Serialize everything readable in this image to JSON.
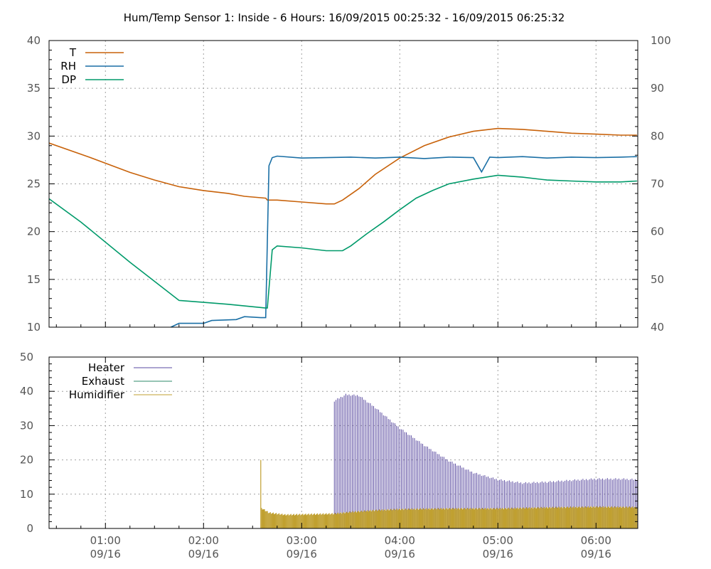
{
  "chart_data": [
    {
      "type": "line",
      "title": "Hum/Temp Sensor 1: Inside - 6 Hours: 16/09/2015 00:25:32 - 16/09/2015 06:25:32",
      "x_range": [
        "00:25:32",
        "06:25:32"
      ],
      "y_left_ticks": [
        "10",
        "15",
        "20",
        "25",
        "30",
        "35",
        "40"
      ],
      "y_left_range": [
        10,
        40
      ],
      "y_right_ticks": [
        "40",
        "50",
        "60",
        "70",
        "80",
        "90",
        "100"
      ],
      "y_right_range": [
        40,
        100
      ],
      "grid": true,
      "legend_position": "top-left",
      "series": [
        {
          "name": "T",
          "axis": "left",
          "color": "#c8620a",
          "points": [
            [
              "00:25",
              29.3
            ],
            [
              "00:50",
              27.8
            ],
            [
              "01:15",
              26.2
            ],
            [
              "01:30",
              25.4
            ],
            [
              "01:45",
              24.7
            ],
            [
              "02:00",
              24.3
            ],
            [
              "02:15",
              24.0
            ],
            [
              "02:25",
              23.7
            ],
            [
              "02:38",
              23.5
            ],
            [
              "02:39",
              23.3
            ],
            [
              "02:45",
              23.3
            ],
            [
              "03:00",
              23.1
            ],
            [
              "03:15",
              22.9
            ],
            [
              "03:20",
              22.9
            ],
            [
              "03:25",
              23.3
            ],
            [
              "03:35",
              24.5
            ],
            [
              "03:45",
              26.0
            ],
            [
              "04:00",
              27.7
            ],
            [
              "04:15",
              29.0
            ],
            [
              "04:30",
              29.9
            ],
            [
              "04:45",
              30.5
            ],
            [
              "05:00",
              30.8
            ],
            [
              "05:15",
              30.7
            ],
            [
              "05:30",
              30.5
            ],
            [
              "05:45",
              30.3
            ],
            [
              "06:00",
              30.2
            ],
            [
              "06:15",
              30.1
            ],
            [
              "06:25",
              30.1
            ]
          ]
        },
        {
          "name": "RH",
          "axis": "right",
          "color": "#1a6fa5",
          "points": [
            [
              "01:40",
              40.0
            ],
            [
              "01:45",
              40.8
            ],
            [
              "02:00",
              40.8
            ],
            [
              "02:05",
              41.4
            ],
            [
              "02:20",
              41.6
            ],
            [
              "02:25",
              42.2
            ],
            [
              "02:35",
              42.0
            ],
            [
              "02:38",
              42.0
            ],
            [
              "02:40",
              73.8
            ],
            [
              "02:42",
              75.5
            ],
            [
              "02:45",
              75.8
            ],
            [
              "03:00",
              75.4
            ],
            [
              "03:15",
              75.5
            ],
            [
              "03:30",
              75.6
            ],
            [
              "03:45",
              75.4
            ],
            [
              "04:00",
              75.6
            ],
            [
              "04:15",
              75.3
            ],
            [
              "04:30",
              75.6
            ],
            [
              "04:45",
              75.5
            ],
            [
              "04:50",
              72.5
            ],
            [
              "04:55",
              75.6
            ],
            [
              "05:00",
              75.5
            ],
            [
              "05:15",
              75.7
            ],
            [
              "05:30",
              75.4
            ],
            [
              "05:45",
              75.6
            ],
            [
              "06:00",
              75.5
            ],
            [
              "06:15",
              75.6
            ],
            [
              "06:25",
              75.7
            ]
          ]
        },
        {
          "name": "DP",
          "axis": "left",
          "color": "#009a6a",
          "points": [
            [
              "00:25",
              23.5
            ],
            [
              "00:45",
              21.0
            ],
            [
              "01:15",
              16.8
            ],
            [
              "01:45",
              12.8
            ],
            [
              "02:00",
              12.6
            ],
            [
              "02:15",
              12.4
            ],
            [
              "02:38",
              12.0
            ],
            [
              "02:39",
              12.0
            ],
            [
              "02:42",
              18.1
            ],
            [
              "02:45",
              18.5
            ],
            [
              "03:00",
              18.3
            ],
            [
              "03:15",
              18.0
            ],
            [
              "03:25",
              18.0
            ],
            [
              "03:30",
              18.5
            ],
            [
              "03:40",
              19.8
            ],
            [
              "03:50",
              21.0
            ],
            [
              "04:00",
              22.3
            ],
            [
              "04:10",
              23.5
            ],
            [
              "04:20",
              24.3
            ],
            [
              "04:30",
              25.0
            ],
            [
              "04:45",
              25.5
            ],
            [
              "05:00",
              25.9
            ],
            [
              "05:15",
              25.7
            ],
            [
              "05:30",
              25.4
            ],
            [
              "05:45",
              25.3
            ],
            [
              "06:00",
              25.2
            ],
            [
              "06:15",
              25.2
            ],
            [
              "06:25",
              25.3
            ]
          ]
        }
      ]
    },
    {
      "type": "bar",
      "x_range": [
        "00:25:32",
        "06:25:32"
      ],
      "x_ticks": [
        {
          "time": "01:00",
          "date": "09/16"
        },
        {
          "time": "02:00",
          "date": "09/16"
        },
        {
          "time": "03:00",
          "date": "09/16"
        },
        {
          "time": "04:00",
          "date": "09/16"
        },
        {
          "time": "05:00",
          "date": "09/16"
        },
        {
          "time": "06:00",
          "date": "09/16"
        }
      ],
      "y_ticks": [
        "0",
        "10",
        "20",
        "30",
        "40",
        "50"
      ],
      "y_range": [
        0,
        50
      ],
      "grid": true,
      "legend_position": "top-left",
      "series": [
        {
          "name": "Heater",
          "color": "#5a4aa0",
          "start": "03:20",
          "end": "06:25",
          "envelope": [
            [
              "03:20",
              37.0
            ],
            [
              "03:27",
              38.8
            ],
            [
              "03:35",
              38.5
            ],
            [
              "03:45",
              35.0
            ],
            [
              "04:00",
              29.0
            ],
            [
              "04:15",
              24.0
            ],
            [
              "04:30",
              19.5
            ],
            [
              "04:45",
              16.0
            ],
            [
              "05:00",
              14.0
            ],
            [
              "05:15",
              13.0
            ],
            [
              "05:30",
              13.3
            ],
            [
              "05:45",
              13.8
            ],
            [
              "06:00",
              14.2
            ],
            [
              "06:15",
              14.2
            ],
            [
              "06:25",
              14.0
            ]
          ]
        },
        {
          "name": "Exhaust",
          "color": "#2e8b6a",
          "start": null,
          "end": null,
          "envelope": []
        },
        {
          "name": "Humidifier",
          "color": "#c0a030",
          "start": "02:35",
          "end": "06:25",
          "spike": [
            "02:35",
            20.0
          ],
          "envelope": [
            [
              "02:36",
              6.0
            ],
            [
              "02:40",
              4.8
            ],
            [
              "02:50",
              4.2
            ],
            [
              "03:20",
              4.5
            ],
            [
              "03:30",
              5.0
            ],
            [
              "03:45",
              5.5
            ],
            [
              "04:00",
              5.8
            ],
            [
              "04:30",
              6.0
            ],
            [
              "05:00",
              6.0
            ],
            [
              "05:30",
              6.3
            ],
            [
              "06:00",
              6.5
            ],
            [
              "06:25",
              6.4
            ]
          ]
        }
      ]
    }
  ]
}
